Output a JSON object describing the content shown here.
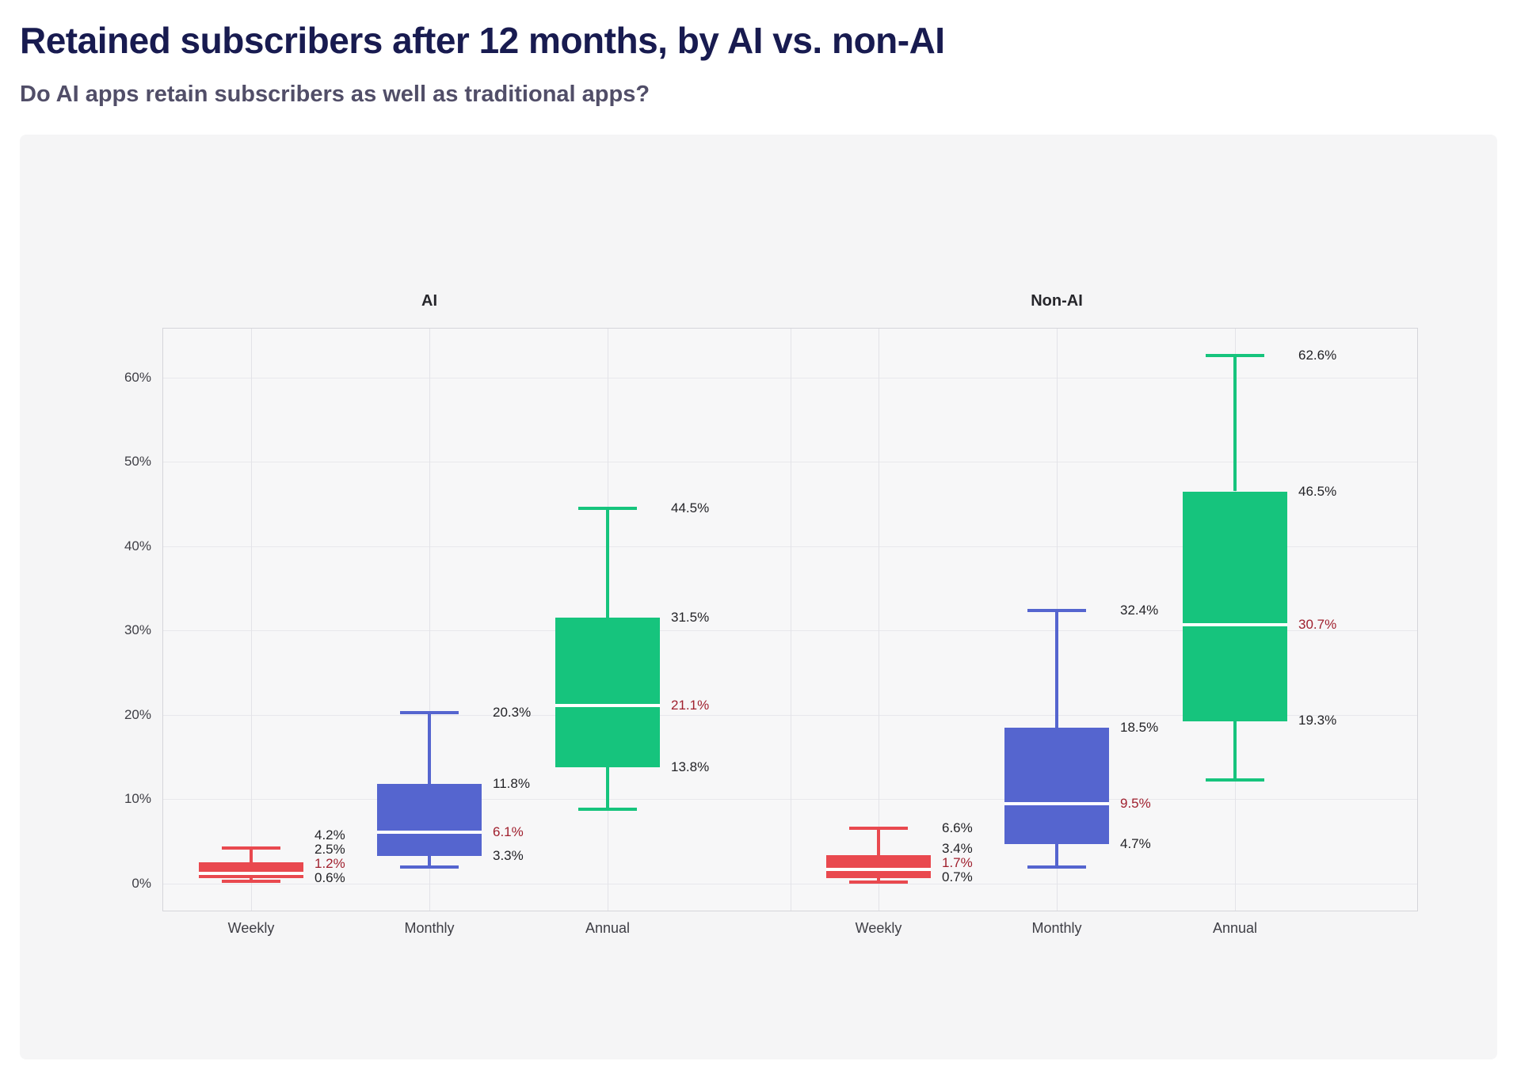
{
  "page": {
    "title": "Retained subscribers after 12 months, by AI vs. non-AI",
    "subtitle": "Do AI apps retain subscribers as well as traditional apps?"
  },
  "chart_data": {
    "type": "box",
    "categories": [
      "Weekly",
      "Monthly",
      "Annual"
    ],
    "y_axis": {
      "ticks": [
        {
          "label": "0%",
          "value": 0
        },
        {
          "label": "10%",
          "value": 10
        },
        {
          "label": "20%",
          "value": 20
        },
        {
          "label": "30%",
          "value": 30
        },
        {
          "label": "40%",
          "value": 40
        },
        {
          "label": "50%",
          "value": 50
        },
        {
          "label": "60%",
          "value": 60
        }
      ],
      "range_top": 65.9,
      "range_bottom": -3.3
    },
    "colors": {
      "weekly": "#e9494f",
      "monthly": "#5565cf",
      "annual": "#16c47d",
      "median_line": "#ffffff",
      "value_label": "#232327",
      "median_label": "#a0202e"
    },
    "legend_position": "none",
    "grid": true,
    "panels": [
      {
        "title": "AI",
        "boxes": [
          {
            "category": "Weekly",
            "color": "#e9494f",
            "whisker_high": 4.2,
            "q3": 2.5,
            "median": 1.2,
            "q1": 0.6,
            "whisker_low": 0.25,
            "labels": {
              "whisker_high": "4.2%",
              "q3": "2.5%",
              "median": "1.2%",
              "q1": "0.6%"
            }
          },
          {
            "category": "Monthly",
            "color": "#5565cf",
            "whisker_high": 20.3,
            "q3": 11.8,
            "median": 6.1,
            "q1": 3.3,
            "whisker_low": 2.0,
            "labels": {
              "whisker_high": "20.3%",
              "q3": "11.8%",
              "median": "6.1%",
              "q1": "3.3%"
            }
          },
          {
            "category": "Annual",
            "color": "#16c47d",
            "whisker_high": 44.5,
            "q3": 31.5,
            "median": 21.1,
            "q1": 13.8,
            "whisker_low": 8.8,
            "labels": {
              "whisker_high": "44.5%",
              "q3": "31.5%",
              "median": "21.1%",
              "q1": "13.8%"
            }
          }
        ]
      },
      {
        "title": "Non-AI",
        "boxes": [
          {
            "category": "Weekly",
            "color": "#e9494f",
            "whisker_high": 6.6,
            "q3": 3.4,
            "median": 1.7,
            "q1": 0.7,
            "whisker_low": 0.2,
            "labels": {
              "whisker_high": "6.6%",
              "q3": "3.4%",
              "median": "1.7%",
              "q1": "0.7%"
            }
          },
          {
            "category": "Monthly",
            "color": "#5565cf",
            "whisker_high": 32.4,
            "q3": 18.5,
            "median": 9.5,
            "q1": 4.7,
            "whisker_low": 2.0,
            "labels": {
              "whisker_high": "32.4%",
              "q3": "18.5%",
              "median": "9.5%",
              "q1": "4.7%"
            }
          },
          {
            "category": "Annual",
            "color": "#16c47d",
            "whisker_high": 62.6,
            "q3": 46.5,
            "median": 30.7,
            "q1": 19.3,
            "whisker_low": 12.3,
            "labels": {
              "whisker_high": "62.6%",
              "q3": "46.5%",
              "median": "30.7%",
              "q1": "19.3%"
            }
          }
        ]
      }
    ]
  }
}
